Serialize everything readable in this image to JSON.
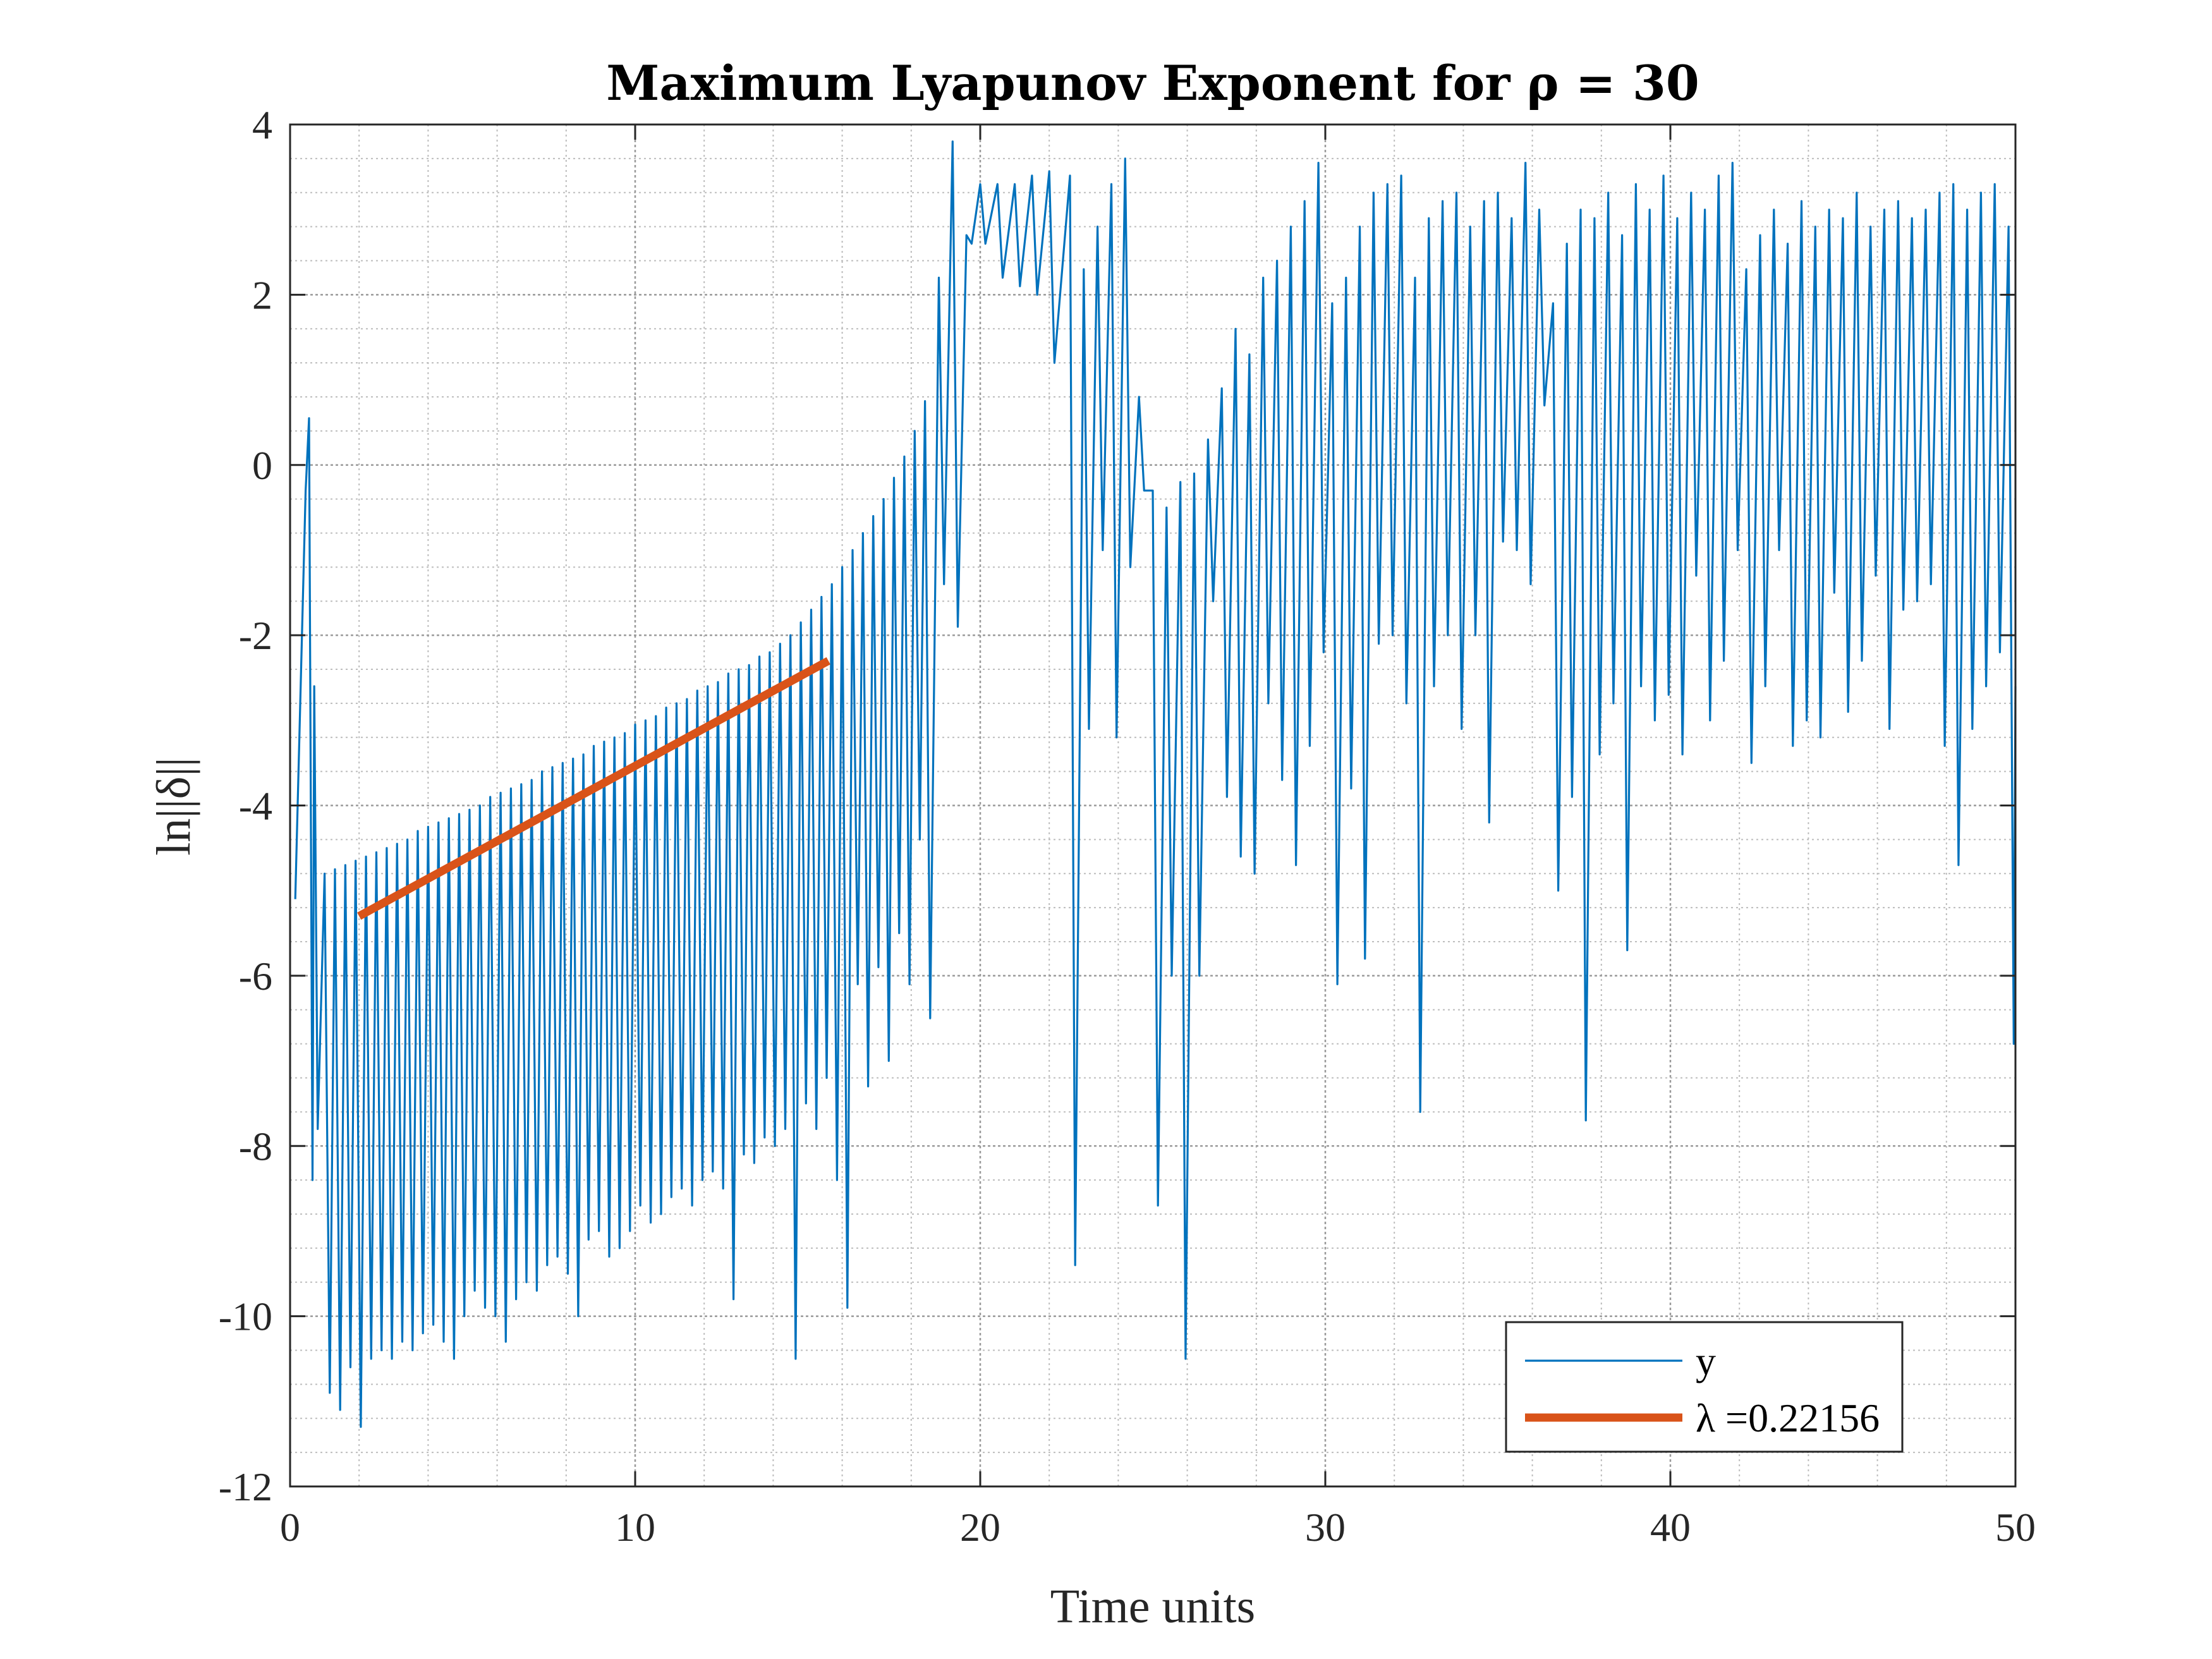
{
  "chart_data": {
    "type": "line",
    "title": "Maximum Lyapunov Exponent for ρ = 30",
    "xlabel": "Time units",
    "ylabel": "ln||δ||",
    "xlim": [
      0,
      50
    ],
    "ylim": [
      -12,
      4
    ],
    "xticks": [
      0,
      10,
      20,
      30,
      40,
      50
    ],
    "yticks": [
      -12,
      -10,
      -8,
      -6,
      -4,
      -2,
      0,
      2,
      4
    ],
    "xtick_labels": [
      "0",
      "10",
      "20",
      "30",
      "40",
      "50"
    ],
    "ytick_labels": [
      "-12",
      "-10",
      "-8",
      "-6",
      "-4",
      "-2",
      "0",
      "2",
      "4"
    ],
    "grid": true,
    "minor_grid": true,
    "legend_position": "bottom-right",
    "colors": {
      "series_y": "#0072BD",
      "fit": "#D95319",
      "axes": "#262626",
      "grid": "#bdbdbd"
    },
    "series": [
      {
        "name": "y",
        "peaks": [
          [
            0.45,
            -0.3
          ],
          [
            0.55,
            0.55
          ],
          [
            0.7,
            -2.6
          ],
          [
            1.0,
            -4.8
          ],
          [
            1.3,
            -4.75
          ],
          [
            1.6,
            -4.7
          ],
          [
            1.9,
            -4.65
          ],
          [
            2.2,
            -4.6
          ],
          [
            2.5,
            -4.55
          ],
          [
            2.8,
            -4.5
          ],
          [
            3.1,
            -4.45
          ],
          [
            3.4,
            -4.4
          ],
          [
            3.7,
            -4.3
          ],
          [
            4.0,
            -4.25
          ],
          [
            4.3,
            -4.2
          ],
          [
            4.6,
            -4.15
          ],
          [
            4.9,
            -4.1
          ],
          [
            5.2,
            -4.05
          ],
          [
            5.5,
            -4.0
          ],
          [
            5.8,
            -3.9
          ],
          [
            6.1,
            -3.85
          ],
          [
            6.4,
            -3.8
          ],
          [
            6.7,
            -3.75
          ],
          [
            7.0,
            -3.7
          ],
          [
            7.3,
            -3.6
          ],
          [
            7.6,
            -3.55
          ],
          [
            7.9,
            -3.5
          ],
          [
            8.2,
            -3.45
          ],
          [
            8.5,
            -3.4
          ],
          [
            8.8,
            -3.3
          ],
          [
            9.1,
            -3.25
          ],
          [
            9.4,
            -3.2
          ],
          [
            9.7,
            -3.15
          ],
          [
            10.0,
            -3.05
          ],
          [
            10.3,
            -3.0
          ],
          [
            10.6,
            -2.95
          ],
          [
            10.9,
            -2.85
          ],
          [
            11.2,
            -2.8
          ],
          [
            11.5,
            -2.75
          ],
          [
            11.8,
            -2.65
          ],
          [
            12.1,
            -2.6
          ],
          [
            12.4,
            -2.55
          ],
          [
            12.7,
            -2.45
          ],
          [
            13.0,
            -2.4
          ],
          [
            13.3,
            -2.35
          ],
          [
            13.6,
            -2.25
          ],
          [
            13.9,
            -2.2
          ],
          [
            14.2,
            -2.1
          ],
          [
            14.5,
            -2.0
          ],
          [
            14.8,
            -1.85
          ],
          [
            15.1,
            -1.7
          ],
          [
            15.4,
            -1.55
          ],
          [
            15.7,
            -1.4
          ],
          [
            16.0,
            -1.2
          ],
          [
            16.3,
            -1.0
          ],
          [
            16.6,
            -0.8
          ],
          [
            16.9,
            -0.6
          ],
          [
            17.2,
            -0.4
          ],
          [
            17.5,
            -0.15
          ],
          [
            17.8,
            0.1
          ],
          [
            18.1,
            0.4
          ],
          [
            18.4,
            0.75
          ],
          [
            18.8,
            2.2
          ],
          [
            19.2,
            3.8
          ],
          [
            19.6,
            2.7
          ],
          [
            20.0,
            3.3
          ],
          [
            20.5,
            3.3
          ],
          [
            21.0,
            3.3
          ],
          [
            21.5,
            3.4
          ],
          [
            22.0,
            3.45
          ],
          [
            22.6,
            3.4
          ],
          [
            23.0,
            2.3
          ],
          [
            23.4,
            2.8
          ],
          [
            23.8,
            3.3
          ],
          [
            24.2,
            3.6
          ],
          [
            24.6,
            0.8
          ],
          [
            25.0,
            -0.3
          ],
          [
            25.4,
            -0.5
          ],
          [
            25.8,
            -0.2
          ],
          [
            26.2,
            -0.1
          ],
          [
            26.6,
            0.3
          ],
          [
            27.0,
            0.9
          ],
          [
            27.4,
            1.6
          ],
          [
            27.8,
            1.3
          ],
          [
            28.2,
            2.2
          ],
          [
            28.6,
            2.4
          ],
          [
            29.0,
            2.8
          ],
          [
            29.4,
            3.1
          ],
          [
            29.8,
            3.55
          ],
          [
            30.2,
            1.9
          ],
          [
            30.6,
            2.2
          ],
          [
            31.0,
            2.8
          ],
          [
            31.4,
            3.2
          ],
          [
            31.8,
            3.3
          ],
          [
            32.2,
            3.4
          ],
          [
            32.6,
            2.2
          ],
          [
            33.0,
            2.9
          ],
          [
            33.4,
            3.1
          ],
          [
            33.8,
            3.2
          ],
          [
            34.2,
            2.8
          ],
          [
            34.6,
            3.1
          ],
          [
            35.0,
            3.2
          ],
          [
            35.4,
            2.9
          ],
          [
            35.8,
            3.55
          ],
          [
            36.2,
            3.0
          ],
          [
            36.6,
            1.9
          ],
          [
            37.0,
            2.6
          ],
          [
            37.4,
            3.0
          ],
          [
            37.8,
            2.9
          ],
          [
            38.2,
            3.2
          ],
          [
            38.6,
            2.7
          ],
          [
            39.0,
            3.3
          ],
          [
            39.4,
            3.0
          ],
          [
            39.8,
            3.4
          ],
          [
            40.2,
            2.9
          ],
          [
            40.6,
            3.2
          ],
          [
            41.0,
            3.0
          ],
          [
            41.4,
            3.4
          ],
          [
            41.8,
            3.55
          ],
          [
            42.2,
            2.3
          ],
          [
            42.6,
            2.7
          ],
          [
            43.0,
            3.0
          ],
          [
            43.4,
            2.6
          ],
          [
            43.8,
            3.1
          ],
          [
            44.2,
            2.8
          ],
          [
            44.6,
            3.0
          ],
          [
            45.0,
            2.9
          ],
          [
            45.4,
            3.2
          ],
          [
            45.8,
            2.8
          ],
          [
            46.2,
            3.0
          ],
          [
            46.6,
            3.1
          ],
          [
            47.0,
            2.9
          ],
          [
            47.4,
            3.0
          ],
          [
            47.8,
            3.2
          ],
          [
            48.2,
            3.3
          ],
          [
            48.6,
            3.0
          ],
          [
            49.0,
            3.2
          ],
          [
            49.4,
            3.3
          ],
          [
            49.8,
            2.8
          ]
        ],
        "troughs": [
          [
            0.0,
            -5.1
          ],
          [
            0.5,
            -8.4
          ],
          [
            0.65,
            -7.8
          ],
          [
            1.0,
            -10.9
          ],
          [
            1.3,
            -11.1
          ],
          [
            1.6,
            -10.6
          ],
          [
            1.9,
            -11.3
          ],
          [
            2.2,
            -10.5
          ],
          [
            2.5,
            -10.4
          ],
          [
            2.8,
            -10.5
          ],
          [
            3.1,
            -10.3
          ],
          [
            3.4,
            -10.4
          ],
          [
            3.7,
            -10.2
          ],
          [
            4.0,
            -10.1
          ],
          [
            4.3,
            -10.3
          ],
          [
            4.6,
            -10.5
          ],
          [
            4.9,
            -10.0
          ],
          [
            5.2,
            -9.7
          ],
          [
            5.5,
            -9.9
          ],
          [
            5.8,
            -10.0
          ],
          [
            6.1,
            -10.3
          ],
          [
            6.4,
            -9.8
          ],
          [
            6.7,
            -9.6
          ],
          [
            7.0,
            -9.7
          ],
          [
            7.3,
            -9.4
          ],
          [
            7.6,
            -9.3
          ],
          [
            7.9,
            -9.5
          ],
          [
            8.2,
            -10.0
          ],
          [
            8.5,
            -9.1
          ],
          [
            8.8,
            -9.0
          ],
          [
            9.1,
            -9.3
          ],
          [
            9.4,
            -9.2
          ],
          [
            9.7,
            -9.0
          ],
          [
            10.0,
            -8.7
          ],
          [
            10.3,
            -8.9
          ],
          [
            10.6,
            -8.8
          ],
          [
            10.9,
            -8.6
          ],
          [
            11.2,
            -8.5
          ],
          [
            11.5,
            -8.7
          ],
          [
            11.8,
            -8.4
          ],
          [
            12.1,
            -8.3
          ],
          [
            12.4,
            -8.5
          ],
          [
            12.7,
            -9.8
          ],
          [
            13.0,
            -8.1
          ],
          [
            13.3,
            -8.2
          ],
          [
            13.6,
            -7.9
          ],
          [
            13.9,
            -8.0
          ],
          [
            14.2,
            -7.8
          ],
          [
            14.5,
            -10.5
          ],
          [
            14.8,
            -7.5
          ],
          [
            15.1,
            -7.8
          ],
          [
            15.4,
            -7.2
          ],
          [
            15.7,
            -8.4
          ],
          [
            16.0,
            -9.9
          ],
          [
            16.3,
            -6.1
          ],
          [
            16.6,
            -7.3
          ],
          [
            16.9,
            -5.9
          ],
          [
            17.2,
            -7.0
          ],
          [
            17.5,
            -5.5
          ],
          [
            17.8,
            -6.1
          ],
          [
            18.1,
            -4.4
          ],
          [
            18.4,
            -6.5
          ],
          [
            18.8,
            -1.4
          ],
          [
            19.2,
            -1.9
          ],
          [
            19.6,
            2.6
          ],
          [
            20.0,
            2.6
          ],
          [
            20.5,
            2.2
          ],
          [
            21.0,
            2.1
          ],
          [
            21.5,
            2.0
          ],
          [
            22.0,
            1.2
          ],
          [
            22.6,
            -9.4
          ],
          [
            23.0,
            -3.1
          ],
          [
            23.4,
            -1.0
          ],
          [
            23.8,
            -3.2
          ],
          [
            24.2,
            -1.2
          ],
          [
            24.6,
            -0.3
          ],
          [
            25.0,
            -8.7
          ],
          [
            25.4,
            -6.0
          ],
          [
            25.8,
            -10.5
          ],
          [
            26.2,
            -6.0
          ],
          [
            26.6,
            -1.6
          ],
          [
            27.0,
            -3.9
          ],
          [
            27.4,
            -4.6
          ],
          [
            27.8,
            -4.8
          ],
          [
            28.2,
            -2.8
          ],
          [
            28.6,
            -3.7
          ],
          [
            29.0,
            -4.7
          ],
          [
            29.4,
            -3.3
          ],
          [
            29.8,
            -2.2
          ],
          [
            30.2,
            -6.1
          ],
          [
            30.6,
            -3.8
          ],
          [
            31.0,
            -5.8
          ],
          [
            31.4,
            -2.1
          ],
          [
            31.8,
            -2.0
          ],
          [
            32.2,
            -2.8
          ],
          [
            32.6,
            -7.6
          ],
          [
            33.0,
            -2.6
          ],
          [
            33.4,
            -2.0
          ],
          [
            33.8,
            -3.1
          ],
          [
            34.2,
            -2.0
          ],
          [
            34.6,
            -4.2
          ],
          [
            35.0,
            -0.9
          ],
          [
            35.4,
            -1.0
          ],
          [
            35.8,
            -1.4
          ],
          [
            36.2,
            0.7
          ],
          [
            36.6,
            -5.0
          ],
          [
            37.0,
            -3.9
          ],
          [
            37.4,
            -7.7
          ],
          [
            37.8,
            -3.4
          ],
          [
            38.2,
            -2.8
          ],
          [
            38.6,
            -5.7
          ],
          [
            39.0,
            -2.6
          ],
          [
            39.4,
            -3.0
          ],
          [
            39.8,
            -2.7
          ],
          [
            40.2,
            -3.4
          ],
          [
            40.6,
            -1.3
          ],
          [
            41.0,
            -3.0
          ],
          [
            41.4,
            -2.3
          ],
          [
            41.8,
            -1.0
          ],
          [
            42.2,
            -3.5
          ],
          [
            42.6,
            -2.6
          ],
          [
            43.0,
            -1.0
          ],
          [
            43.4,
            -3.3
          ],
          [
            43.8,
            -3.0
          ],
          [
            44.2,
            -3.2
          ],
          [
            44.6,
            -1.5
          ],
          [
            45.0,
            -2.9
          ],
          [
            45.4,
            -2.3
          ],
          [
            45.8,
            -1.3
          ],
          [
            46.2,
            -3.1
          ],
          [
            46.6,
            -1.7
          ],
          [
            47.0,
            -1.6
          ],
          [
            47.4,
            -1.4
          ],
          [
            47.8,
            -3.3
          ],
          [
            48.2,
            -4.7
          ],
          [
            48.6,
            -3.1
          ],
          [
            49.0,
            -2.6
          ],
          [
            49.4,
            -2.2
          ],
          [
            49.8,
            -6.8
          ],
          [
            50.0,
            -2.6
          ]
        ]
      },
      {
        "name": "λ =0.22156",
        "x": [
          2.0,
          15.6
        ],
        "y": [
          -5.3,
          -2.3
        ]
      }
    ]
  },
  "legend": {
    "items": [
      {
        "label": "y"
      },
      {
        "label": "λ =0.22156"
      }
    ]
  }
}
